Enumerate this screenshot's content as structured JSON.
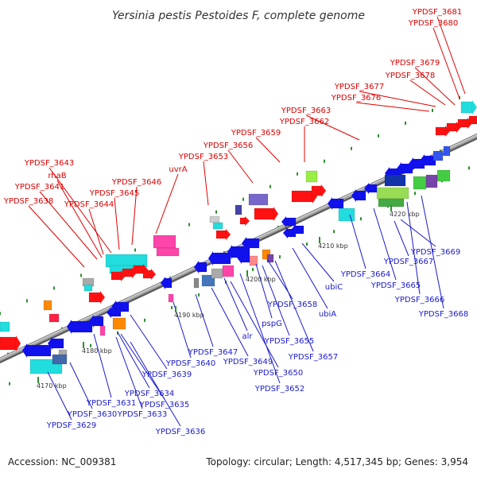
{
  "title": "Yersinia pestis Pestoides F, complete genome",
  "footer": {
    "accession": "Accession: NC_009381",
    "summary": "Topology: circular; Length: 4,517,345 bp; Genes: 3,954"
  },
  "colors": {
    "top_label": "#dd0000",
    "bottom_label": "#1a1acc",
    "backbone": "#8a8a8a",
    "dots": "#2f8f2f"
  },
  "scale_ticks": [
    {
      "label": "4170 kbp"
    },
    {
      "label": "4180 kbp"
    },
    {
      "label": "4190 kbp"
    },
    {
      "label": "4200 kbp"
    },
    {
      "label": "4210 kbp"
    },
    {
      "label": "4220 kbp"
    }
  ],
  "top_labels": [
    {
      "text": "YPDSF_3681"
    },
    {
      "text": "YPDSF_3680"
    },
    {
      "text": "YPDSF_3679"
    },
    {
      "text": "YPDSF_3678"
    },
    {
      "text": "YPDSF_3677"
    },
    {
      "text": "YPDSF_3676"
    },
    {
      "text": "YPDSF_3663"
    },
    {
      "text": "YPDSF_3662"
    },
    {
      "text": "YPDSF_3659"
    },
    {
      "text": "YPDSF_3656"
    },
    {
      "text": "YPDSF_3653"
    },
    {
      "text": "uvrA"
    },
    {
      "text": "YPDSF_3646"
    },
    {
      "text": "YPDSF_3645"
    },
    {
      "text": "YPDSF_3643"
    },
    {
      "text": "rhaB"
    },
    {
      "text": "YPDSF_3641"
    },
    {
      "text": "YPDSF_3644"
    },
    {
      "text": "YPDSF_3638"
    }
  ],
  "bottom_labels": [
    {
      "text": "YPDSF_3669"
    },
    {
      "text": "YPDSF_3667"
    },
    {
      "text": "YPDSF_3664"
    },
    {
      "text": "YPDSF_3665"
    },
    {
      "text": "YPDSF_3666"
    },
    {
      "text": "YPDSF_3668"
    },
    {
      "text": "ubiC"
    },
    {
      "text": "ubiA"
    },
    {
      "text": "YPDSF_3658"
    },
    {
      "text": "pspG"
    },
    {
      "text": "YPDSF_3655"
    },
    {
      "text": "YPDSF_3657"
    },
    {
      "text": "alr"
    },
    {
      "text": "YPDSF_3647"
    },
    {
      "text": "YPDSF_3649"
    },
    {
      "text": "YPDSF_3650"
    },
    {
      "text": "YPDSF_3652"
    },
    {
      "text": "YPDSF_3640"
    },
    {
      "text": "YPDSF_3639"
    },
    {
      "text": "YPDSF_3634"
    },
    {
      "text": "YPDSF_3635"
    },
    {
      "text": "YPDSF_3631"
    },
    {
      "text": "YPDSF_3633"
    },
    {
      "text": "YPDSF_3630"
    },
    {
      "text": "YPDSF_3636"
    },
    {
      "text": "YPDSF_3629"
    }
  ]
}
